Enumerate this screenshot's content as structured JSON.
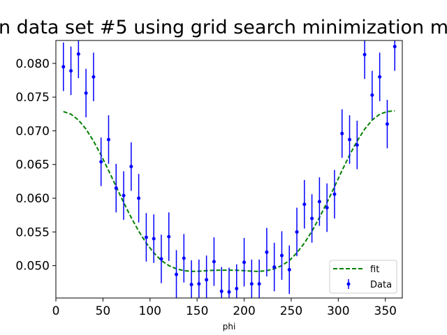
{
  "chart_data": {
    "type": "scatter",
    "title": "n data set #5 using grid search minimization m",
    "xlabel": "phi",
    "ylabel": "",
    "xlim": [
      0,
      368
    ],
    "ylim": [
      0.0452,
      0.0834
    ],
    "xticks": [
      0,
      50,
      100,
      150,
      200,
      250,
      300,
      350
    ],
    "yticks": [
      0.05,
      0.055,
      0.06,
      0.065,
      0.07,
      0.075,
      0.08
    ],
    "grid": false,
    "legend_position": "lower-right",
    "series": [
      {
        "name": "Data",
        "style": "errorbar",
        "color": "#0000ff",
        "x": [
          8,
          16,
          24,
          32,
          40,
          48,
          56,
          64,
          72,
          80,
          88,
          96,
          104,
          112,
          120,
          128,
          136,
          144,
          152,
          160,
          168,
          176,
          184,
          192,
          200,
          208,
          216,
          224,
          232,
          240,
          248,
          256,
          264,
          272,
          280,
          288,
          296,
          304,
          312,
          320,
          328,
          336,
          344,
          352,
          360
        ],
        "y": [
          0.0795,
          0.0789,
          0.0814,
          0.0756,
          0.078,
          0.0654,
          0.0687,
          0.0615,
          0.0604,
          0.0647,
          0.06,
          0.0542,
          0.054,
          0.051,
          0.0543,
          0.0487,
          0.0511,
          0.0472,
          0.0473,
          0.0479,
          0.0506,
          0.0462,
          0.0461,
          0.0466,
          0.0505,
          0.0473,
          0.0473,
          0.052,
          0.0498,
          0.0515,
          0.0494,
          0.055,
          0.0591,
          0.057,
          0.0595,
          0.0586,
          0.0606,
          0.0696,
          0.0687,
          0.0679,
          0.0813,
          0.0753,
          0.078,
          0.071,
          0.0825
        ],
        "yerr": 0.0036
      },
      {
        "name": "fit",
        "style": "dashed-line",
        "color": "#008000",
        "x": [
          8,
          16,
          24,
          32,
          40,
          48,
          56,
          64,
          72,
          80,
          88,
          96,
          104,
          112,
          120,
          128,
          136,
          144,
          152,
          160,
          168,
          176,
          184,
          192,
          200,
          208,
          216,
          224,
          232,
          240,
          248,
          256,
          264,
          272,
          280,
          288,
          296,
          304,
          312,
          320,
          328,
          336,
          344,
          352,
          360
        ],
        "y": [
          0.07285,
          0.07247,
          0.0716,
          0.07025,
          0.06848,
          0.06639,
          0.06411,
          0.06172,
          0.05937,
          0.05715,
          0.05511,
          0.05335,
          0.0519,
          0.05076,
          0.05001,
          0.04953,
          0.04926,
          0.04914,
          0.04918,
          0.04926,
          0.04931,
          0.04933,
          0.04933,
          0.04931,
          0.04926,
          0.04918,
          0.04914,
          0.04926,
          0.04953,
          0.05001,
          0.05076,
          0.0519,
          0.05335,
          0.05511,
          0.05715,
          0.05937,
          0.06172,
          0.06411,
          0.06639,
          0.06848,
          0.07025,
          0.0716,
          0.07247,
          0.07285,
          0.07298
        ]
      }
    ]
  }
}
